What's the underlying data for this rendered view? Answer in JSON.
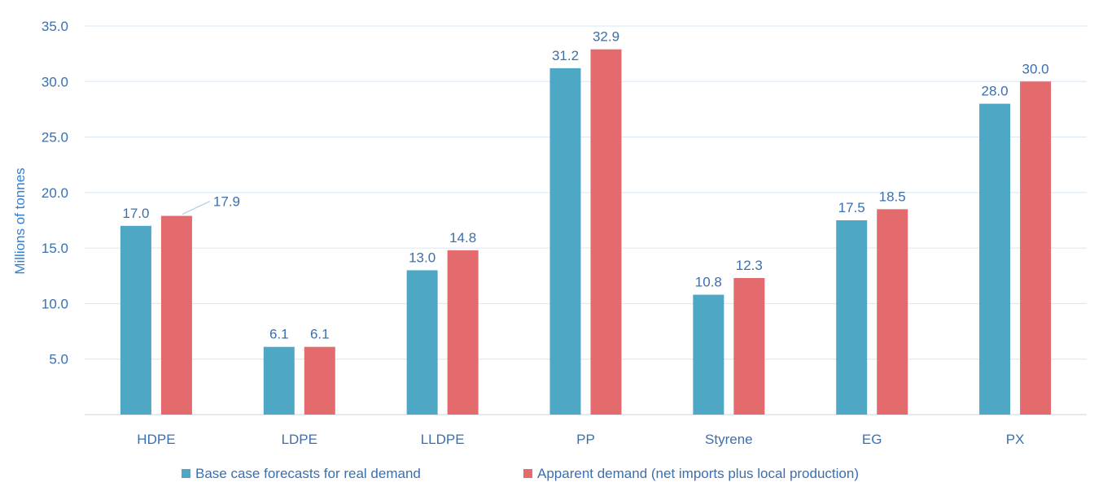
{
  "chart_data": {
    "type": "bar",
    "title": "",
    "xlabel": "",
    "ylabel": "Millions of tonnes",
    "ylim": [
      0,
      35
    ],
    "yticks": [
      5,
      10,
      15,
      20,
      25,
      30,
      35
    ],
    "ytick_labels": [
      "5.0",
      "10.0",
      "15.0",
      "20.0",
      "25.0",
      "30.0",
      "35.0"
    ],
    "grid": true,
    "legend_position": "bottom",
    "categories": [
      "HDPE",
      "LDPE",
      "LLDPE",
      "PP",
      "Styrene",
      "EG",
      "PX"
    ],
    "series": [
      {
        "name": "Base case forecasts for real demand",
        "color": "#4ea8c5",
        "values": [
          17.0,
          6.1,
          13.0,
          31.2,
          10.8,
          17.5,
          28.0
        ],
        "labels": [
          "17.0",
          "6.1",
          "13.0",
          "31.2",
          "10.8",
          "17.5",
          "28.0"
        ]
      },
      {
        "name": "Apparent demand (net imports plus local production)",
        "color": "#e36b6e",
        "values": [
          17.9,
          6.1,
          14.8,
          32.9,
          12.3,
          18.5,
          30.0
        ],
        "labels": [
          "17.9",
          "6.1",
          "14.8",
          "32.9",
          "12.3",
          "18.5",
          "30.0"
        ]
      }
    ]
  }
}
